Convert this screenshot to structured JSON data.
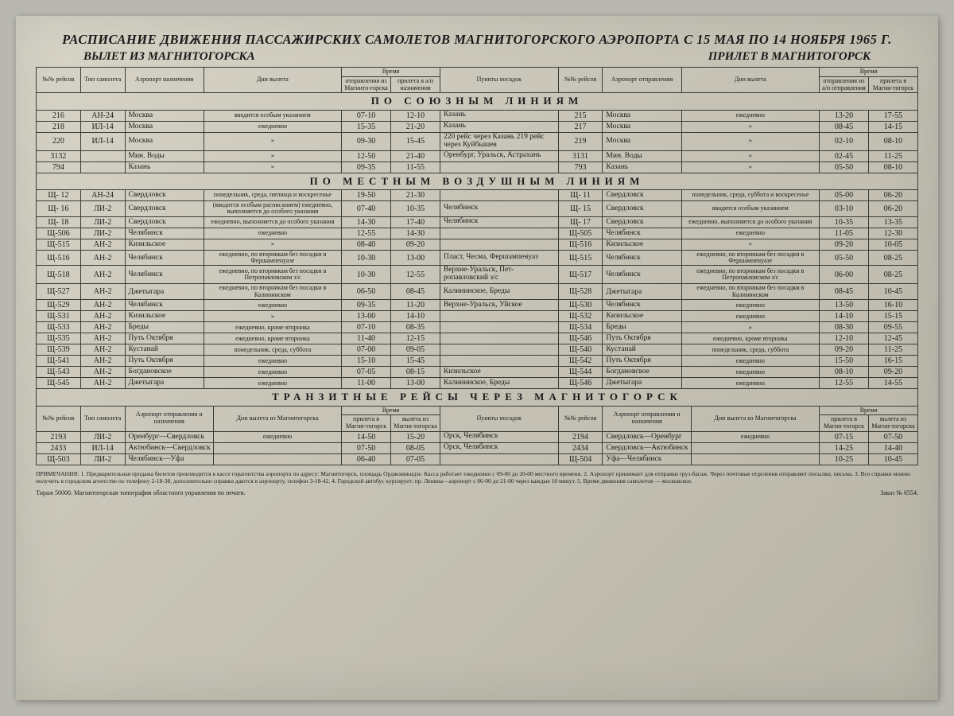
{
  "title": "РАСПИСАНИЕ ДВИЖЕНИЯ ПАССАЖИРСКИХ САМОЛЕТОВ МАГНИТОГОРСКОГО АЭРОПОРТА С 15 МАЯ ПО 14 НОЯБРЯ 1965 Г.",
  "subtitle_left": "ВЫЛЕТ ИЗ МАГНИТОГОРСКА",
  "subtitle_right": "ПРИЛЕТ В МАГНИТОГОРСК",
  "hdr": {
    "flight_no": "№№ рейсов",
    "aircraft": "Тип самолета",
    "dest_airport": "Аэропорт назначения",
    "dep_days": "Дни вылета",
    "time": "Время",
    "dep_time": "отправления из Магнито-горска",
    "arr_time_dest": "прилета в а/п назначения",
    "stops": "Пункты посадок",
    "orig_airport": "Аэропорт отправления",
    "dep_time_orig": "отправления из а/п отправления",
    "arr_time_mg": "прилета в Магни-тогорск",
    "route_airport": "Аэропорт отправления и назначения",
    "dep_days_mg": "Дни вылета из Магнитогорска",
    "arr_mg": "прилета в Магни-тогорск",
    "dep_mg": "вылета из Магни-тогорска"
  },
  "section1": "ПО СОЮЗНЫМ ЛИНИЯМ",
  "section2": "ПО МЕСТНЫМ ВОЗДУШНЫМ ЛИНИЯМ",
  "section3": "ТРАНЗИТНЫЕ РЕЙСЫ ЧЕРЕЗ МАГНИТОГОРСК",
  "union": [
    {
      "no": "216",
      "ac": "АН-24",
      "dest": "Москва",
      "days": "вводится особым указанием",
      "dep": "07-10",
      "arr": "12-10",
      "stops": "Казань",
      "no2": "215",
      "orig": "Москва",
      "days2": "ежедневно",
      "dep2": "13-20",
      "arr2": "17-55"
    },
    {
      "no": "218",
      "ac": "ИЛ-14",
      "dest": "Москва",
      "days": "ежедневно",
      "dep": "15-35",
      "arr": "21-20",
      "stops": "Казань",
      "no2": "217",
      "orig": "Москва",
      "days2": "»",
      "dep2": "08-45",
      "arr2": "14-15"
    },
    {
      "no": "220",
      "ac": "ИЛ-14",
      "dest": "Москва",
      "days": "»",
      "dep": "09-30",
      "arr": "15-45",
      "stops": "220 рейс через Казань 219 рейс через Куйбышев",
      "no2": "219",
      "orig": "Москва",
      "days2": "»",
      "dep2": "02-10",
      "arr2": "08-10"
    },
    {
      "no": "3132",
      "ac": "",
      "dest": "Мин. Воды",
      "days": "»",
      "dep": "12-50",
      "arr": "21-40",
      "stops": "Оренбург, Уральск, Астрахань",
      "no2": "3131",
      "orig": "Мин. Воды",
      "days2": "»",
      "dep2": "02-45",
      "arr2": "11-25"
    },
    {
      "no": "794",
      "ac": "",
      "dest": "Казань",
      "days": "»",
      "dep": "09-35",
      "arr": "11-55",
      "stops": "",
      "no2": "793",
      "orig": "Казань",
      "days2": "»",
      "dep2": "05-50",
      "arr2": "08-10"
    }
  ],
  "local": [
    {
      "no": "Щ- 12",
      "ac": "АН-24",
      "dest": "Свердловск",
      "days": "понедельник, среда, пятница и воскресенье",
      "dep": "19-50",
      "arr": "21-30",
      "stops": "",
      "no2": "Щ- 11",
      "orig": "Свердловск",
      "days2": "понедельник, среда, суббота и воскресенье",
      "dep2": "05-00",
      "arr2": "06-20"
    },
    {
      "no": "Щ- 16",
      "ac": "ЛИ-2",
      "dest": "Свердловск",
      "days": "(вводится особым расписанием) ежедневно, выполняется до особого указания",
      "dep": "07-40",
      "arr": "10-35",
      "stops": "Челябинск",
      "no2": "Щ- 15",
      "orig": "Свердловск",
      "days2": "вводится особым указанием",
      "dep2": "03-10",
      "arr2": "06-20"
    },
    {
      "no": "Щ- 18",
      "ac": "ЛИ-2",
      "dest": "Свердловск",
      "days": "ежедневно, выполняется до особого указания",
      "dep": "14-30",
      "arr": "17-40",
      "stops": "Челябинск",
      "no2": "Щ- 17",
      "orig": "Свердловск",
      "days2": "ежедневно, выполняется до особого указания",
      "dep2": "10-35",
      "arr2": "13-35"
    },
    {
      "no": "Щ-506",
      "ac": "ЛИ-2",
      "dest": "Челябинск",
      "days": "ежедневно",
      "dep": "12-55",
      "arr": "14-30",
      "stops": "",
      "no2": "Щ-505",
      "orig": "Челябинск",
      "days2": "ежедневно",
      "dep2": "11-05",
      "arr2": "12-30"
    },
    {
      "no": "Щ-515",
      "ac": "АН-2",
      "dest": "Кизильское",
      "days": "»",
      "dep": "08-40",
      "arr": "09-20",
      "stops": "",
      "no2": "Щ-516",
      "orig": "Кизильское",
      "days2": "»",
      "dep2": "09-20",
      "arr2": "10-05"
    },
    {
      "no": "Щ-516",
      "ac": "АН-2",
      "dest": "Челябинск",
      "days": "ежедневно, по вторникам без посадки в Фершампенуазе",
      "dep": "10-30",
      "arr": "13-00",
      "stops": "Пласт, Чесма, Фершампенуаз",
      "no2": "Щ-515",
      "orig": "Челябинск",
      "days2": "ежедневно, по вторникам без посадки в Фершампенуазе",
      "dep2": "05-50",
      "arr2": "08-25"
    },
    {
      "no": "Щ-518",
      "ac": "АН-2",
      "dest": "Челябинск",
      "days": "ежедневно, по вторникам без посадки в Петропавловском з/с",
      "dep": "10-30",
      "arr": "12-55",
      "stops": "Верхне-Уральск, Пет-ропавловский з/с",
      "no2": "Щ-517",
      "orig": "Челябинск",
      "days2": "ежедневно, по вторникам без посадки в Петропавловском з/с",
      "dep2": "06-00",
      "arr2": "08-25"
    },
    {
      "no": "Щ-527",
      "ac": "АН-2",
      "dest": "Джетыгара",
      "days": "ежедневно, по вторникам без посадки в Калининском",
      "dep": "06-50",
      "arr": "08-45",
      "stops": "Калининское, Бреды",
      "no2": "Щ-528",
      "orig": "Джетыгара",
      "days2": "ежедневно, по вторникам без посадки в Калининском",
      "dep2": "08-45",
      "arr2": "10-45"
    },
    {
      "no": "Щ-529",
      "ac": "АН-2",
      "dest": "Челябинск",
      "days": "ежедневно",
      "dep": "09-35",
      "arr": "11-20",
      "stops": "Верхне-Уральск, Уйское",
      "no2": "Щ-530",
      "orig": "Челябинск",
      "days2": "ежедневно",
      "dep2": "13-50",
      "arr2": "16-10"
    },
    {
      "no": "Щ-531",
      "ac": "АН-2",
      "dest": "Кизильское",
      "days": "»",
      "dep": "13-00",
      "arr": "14-10",
      "stops": "",
      "no2": "Щ-532",
      "orig": "Кизильское",
      "days2": "ежедневно",
      "dep2": "14-10",
      "arr2": "15-15"
    },
    {
      "no": "Щ-533",
      "ac": "АН-2",
      "dest": "Бреды",
      "days": "ежедневно, кроме вторника",
      "dep": "07-10",
      "arr": "08-35",
      "stops": "",
      "no2": "Щ-534",
      "orig": "Бреды",
      "days2": "»",
      "dep2": "08-30",
      "arr2": "09-55"
    },
    {
      "no": "Щ-535",
      "ac": "АН-2",
      "dest": "Путь Октября",
      "days": "ежедневно, кроме вторника",
      "dep": "11-40",
      "arr": "12-15",
      "stops": "",
      "no2": "Щ-546",
      "orig": "Путь Октября",
      "days2": "ежедневно, кроме вторника",
      "dep2": "12-10",
      "arr2": "12-45"
    },
    {
      "no": "Щ-539",
      "ac": "АН-2",
      "dest": "Кустанай",
      "days": "понедельник, среда, суббота",
      "dep": "07-00",
      "arr": "09-05",
      "stops": "",
      "no2": "Щ-540",
      "orig": "Кустанай",
      "days2": "понедельник, среда, суббота",
      "dep2": "09-20",
      "arr2": "11-25"
    },
    {
      "no": "Щ-541",
      "ac": "АН-2",
      "dest": "Путь Октября",
      "days": "ежедневно",
      "dep": "15-10",
      "arr": "15-45",
      "stops": "",
      "no2": "Щ-542",
      "orig": "Путь Октября",
      "days2": "ежедневно",
      "dep2": "15-50",
      "arr2": "16-15"
    },
    {
      "no": "Щ-543",
      "ac": "АН-2",
      "dest": "Богдановское",
      "days": "ежедневно",
      "dep": "07-05",
      "arr": "08-15",
      "stops": "Кизильское",
      "no2": "Щ-544",
      "orig": "Богдановское",
      "days2": "ежедневно",
      "dep2": "08-10",
      "arr2": "09-20"
    },
    {
      "no": "Щ-545",
      "ac": "АН-2",
      "dest": "Джетыгара",
      "days": "ежедневно",
      "dep": "11-00",
      "arr": "13-00",
      "stops": "Калининское, Бреды",
      "no2": "Щ-546",
      "orig": "Джетыгара",
      "days2": "ежедневно",
      "dep2": "12-55",
      "arr2": "14-55"
    }
  ],
  "transit": [
    {
      "no": "2193",
      "ac": "ЛИ-2",
      "route": "Оренбург—Свердловск",
      "days": "ежедневно",
      "arr": "14-50",
      "dep": "15-20",
      "stops": "Орск, Челябинск",
      "no2": "2194",
      "route2": "Свердловск—Оренбург",
      "days2": "ежедневно",
      "arr2": "07-15",
      "dep2": "07-50"
    },
    {
      "no": "2433",
      "ac": "ИЛ-14",
      "route": "Актюбинск—Свердловск",
      "days": "",
      "arr": "07-50",
      "dep": "08-05",
      "stops": "Орск, Челябинск",
      "no2": "2434",
      "route2": "Свердловск—Актюбинск",
      "days2": "",
      "arr2": "14-25",
      "dep2": "14-40"
    },
    {
      "no": "Щ-503",
      "ac": "ЛИ-2",
      "route": "Челябинск—Уфа",
      "days": "",
      "arr": "06-40",
      "dep": "07-05",
      "stops": "",
      "no2": "Щ-504",
      "route2": "Уфа—Челябинск",
      "days2": "",
      "arr2": "10-25",
      "dep2": "10-45"
    }
  ],
  "notes": "ПРИМЕЧАНИЯ: 1. Предварительная продажа билетов производится в кассе горагентства аэропорта по адресу: Магнитогорск, площадь Орджоникидзе. Касса работает ежедневно с 09-00 до 20-00 местного времени. 2. Аэропорт принимает для отправки груз-багаж. Через почтовые отделения отправляет посылки, письма. 3. Все справки можно получить в городском агентстве по телефону 2-18-38, дополнительно справки даются в аэропорту, телефон 3-18-42. 4. Городской автобус курсирует: пр. Ленина—аэропорт с 06-00 до 21-00 через каждые 10 минут. 5. Время движения самолетов — московское.",
  "tirage": "Тираж 50000. Магнитогорская типография областного управления по печати.",
  "zakaz": "Заказ № 6554."
}
